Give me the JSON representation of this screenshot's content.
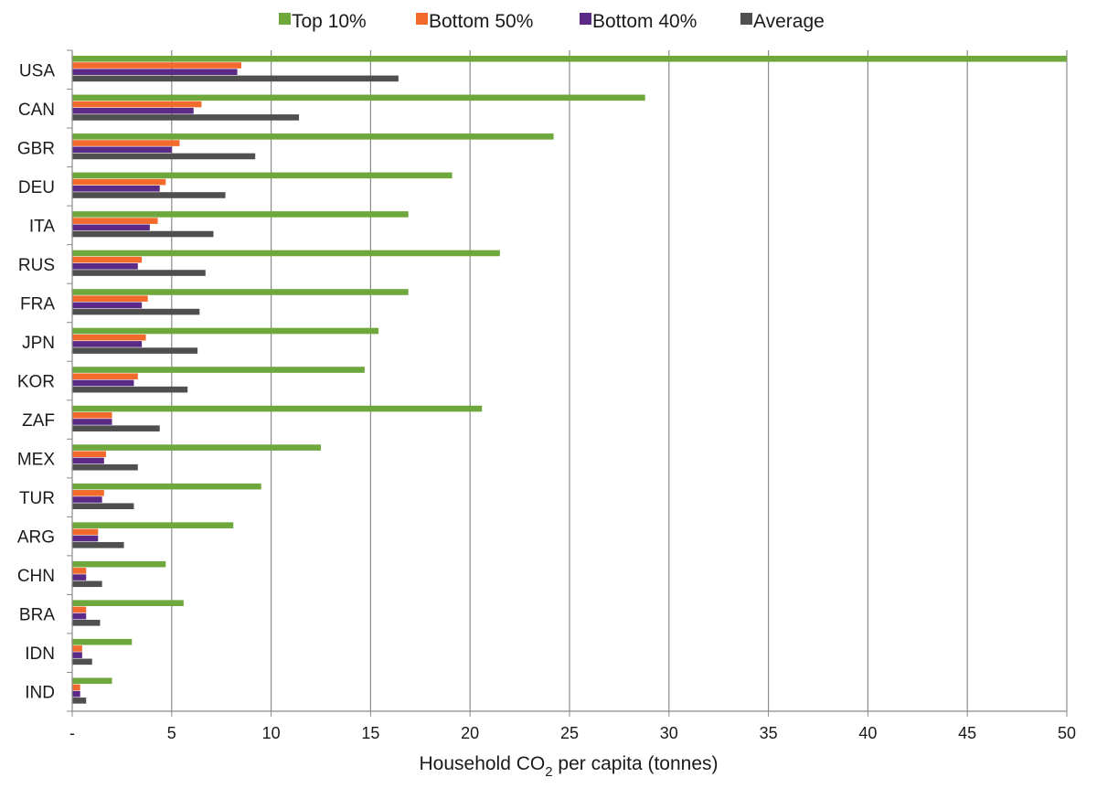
{
  "chart_data": {
    "type": "bar",
    "orientation": "horizontal",
    "categories": [
      "USA",
      "CAN",
      "GBR",
      "DEU",
      "ITA",
      "RUS",
      "FRA",
      "JPN",
      "KOR",
      "ZAF",
      "MEX",
      "TUR",
      "ARG",
      "CHN",
      "BRA",
      "IDN",
      "IND"
    ],
    "series": [
      {
        "name": "Top 10%",
        "color": "#6ea83c",
        "values": [
          50.0,
          28.8,
          24.2,
          19.1,
          16.9,
          21.5,
          16.9,
          15.4,
          14.7,
          20.6,
          12.5,
          9.5,
          8.1,
          4.7,
          5.6,
          3.0,
          2.0
        ]
      },
      {
        "name": "Bottom 50%",
        "color": "#f26b2c",
        "values": [
          8.5,
          6.5,
          5.4,
          4.7,
          4.3,
          3.5,
          3.8,
          3.7,
          3.3,
          2.0,
          1.7,
          1.6,
          1.3,
          0.7,
          0.7,
          0.5,
          0.4
        ]
      },
      {
        "name": "Bottom 40%",
        "color": "#5b2a86",
        "values": [
          8.3,
          6.1,
          5.0,
          4.4,
          3.9,
          3.3,
          3.5,
          3.5,
          3.1,
          2.0,
          1.6,
          1.5,
          1.3,
          0.7,
          0.7,
          0.5,
          0.4
        ]
      },
      {
        "name": "Average",
        "color": "#4f4f4f",
        "values": [
          16.4,
          11.4,
          9.2,
          7.7,
          7.1,
          6.7,
          6.4,
          6.3,
          5.8,
          4.4,
          3.3,
          3.1,
          2.6,
          1.5,
          1.4,
          1.0,
          0.7
        ]
      }
    ],
    "xlim": [
      0,
      50
    ],
    "xticks": [
      0,
      5,
      10,
      15,
      20,
      25,
      30,
      35,
      40,
      45,
      50
    ],
    "xtick_labels": [
      "-",
      "5",
      "10",
      "15",
      "20",
      "25",
      "30",
      "35",
      "40",
      "45",
      "50"
    ],
    "xlabel": {
      "prefix": "Household CO",
      "subscript": "2",
      "suffix": " per capita (tonnes)"
    },
    "ylabel": "",
    "title": "",
    "grid": "vertical",
    "legend_position": "top"
  }
}
